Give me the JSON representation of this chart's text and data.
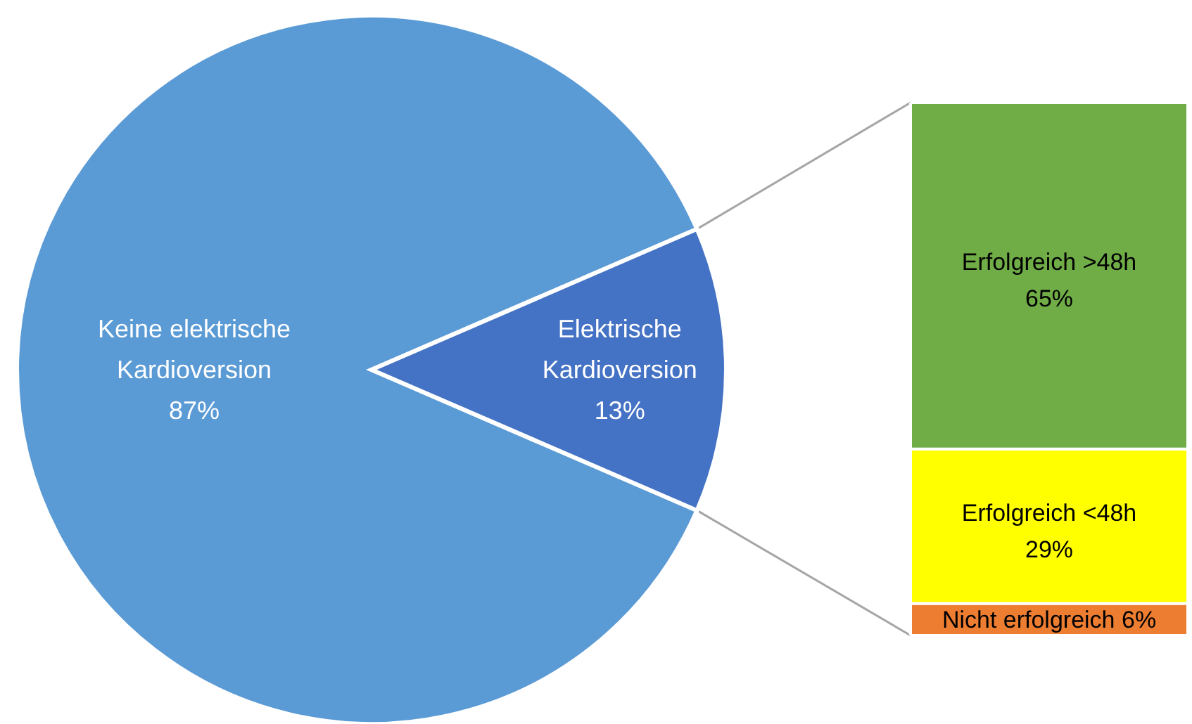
{
  "chart_data": [
    {
      "type": "pie",
      "categories": [
        "Keine elektrische Kardioversion",
        "Elektrische Kardioversion"
      ],
      "values": [
        87,
        13
      ],
      "colors": [
        "#5b9bd5",
        "#4472c4"
      ],
      "value_labels": [
        "87%",
        "13%"
      ]
    },
    {
      "type": "bar",
      "stacked": true,
      "categories": [
        null
      ],
      "series": [
        {
          "name": "Nicht erfolgreich",
          "color": "#ed7d31",
          "values": [
            6
          ],
          "value_labels": [
            "6%"
          ]
        },
        {
          "name": "Erfolgreich <48h",
          "color": "#ffff00",
          "values": [
            29
          ],
          "value_labels": [
            "29%"
          ]
        },
        {
          "name": "Erfolgreich >48h",
          "color": "#70ad47",
          "values": [
            65
          ],
          "value_labels": [
            "65%"
          ]
        }
      ]
    }
  ]
}
